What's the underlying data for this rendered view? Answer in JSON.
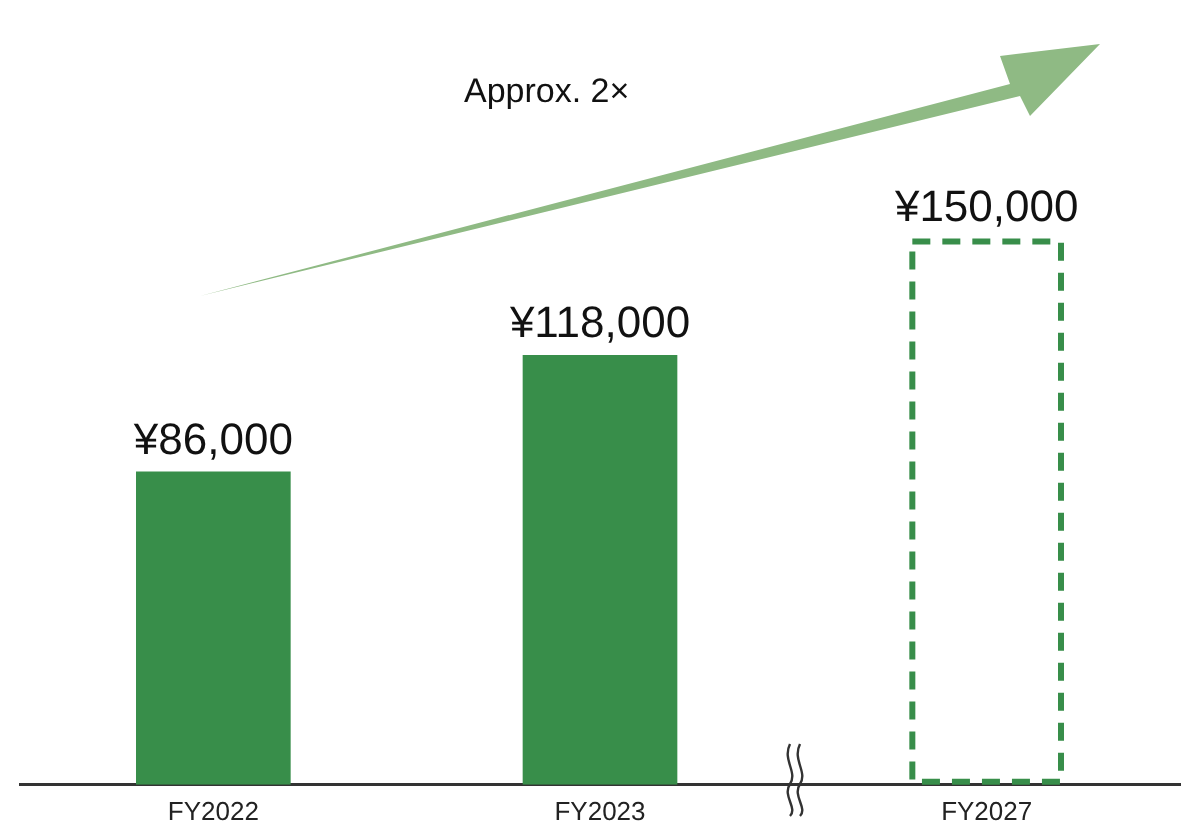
{
  "chart_data": {
    "type": "bar",
    "categories": [
      "FY2022",
      "FY2023",
      "FY2027"
    ],
    "series": [
      {
        "color": "#388e4a",
        "values": [
          86000,
          118000,
          null
        ],
        "value_labels": [
          "¥86,000",
          "¥118,000",
          null
        ]
      },
      {
        "color": "#388e4a",
        "values": [
          null,
          null,
          150000
        ],
        "value_labels": [
          null,
          null,
          "¥150,000"
        ],
        "line_style": "dashed"
      }
    ],
    "annotations": [
      "Approx. 2×"
    ],
    "grid": false,
    "legend": false
  }
}
